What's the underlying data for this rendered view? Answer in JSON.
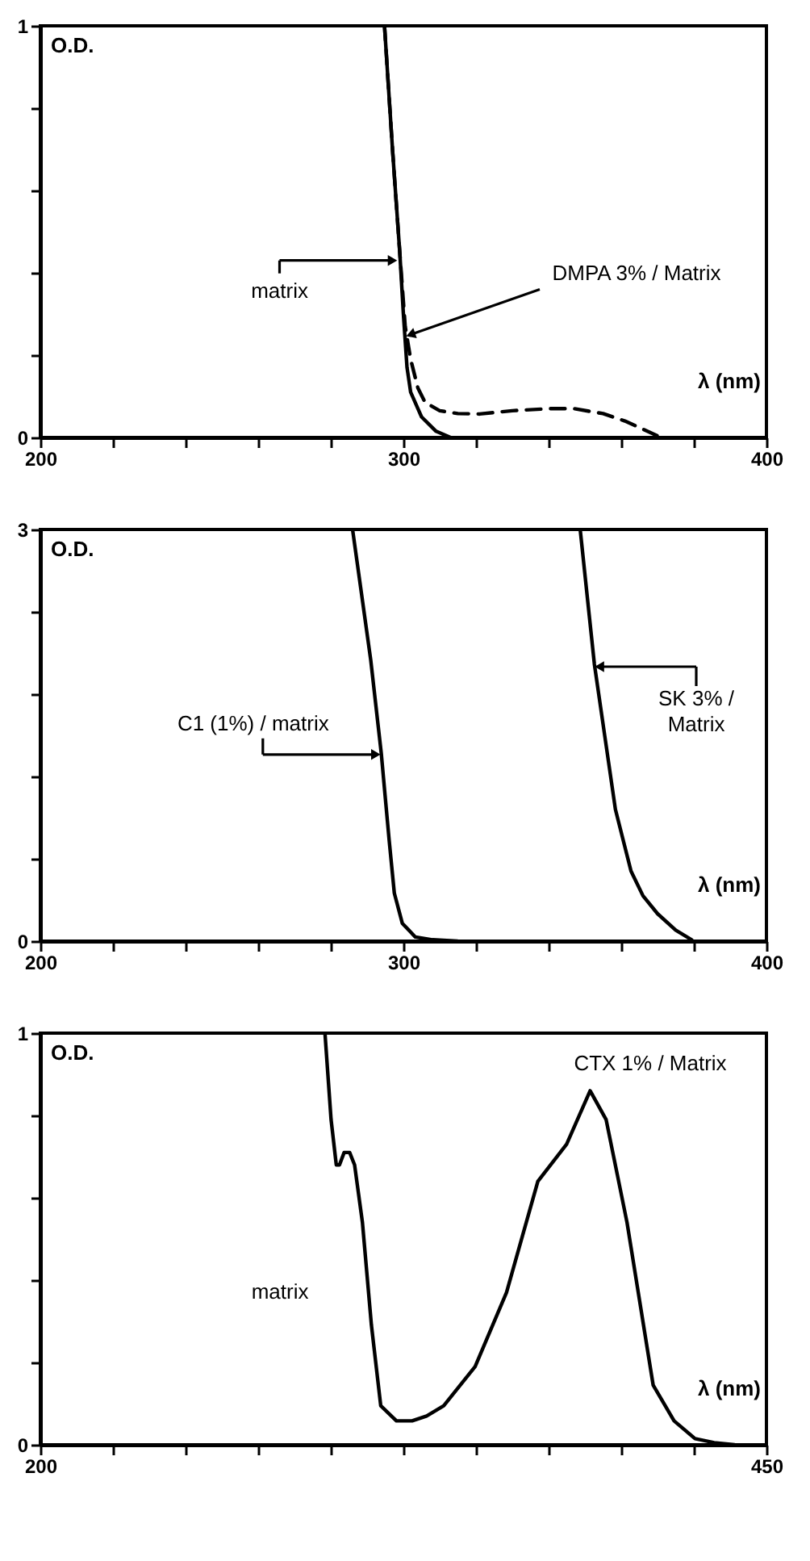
{
  "chart_data": [
    {
      "type": "line",
      "xlabel": "λ (nm)",
      "ylabel": "O.D.",
      "xlim": [
        200,
        400
      ],
      "ylim": [
        0,
        1
      ],
      "xticks": [
        200,
        {
          "value": 220,
          "label": null
        },
        {
          "value": 240,
          "label": null
        },
        {
          "value": 260,
          "label": null
        },
        {
          "value": 280,
          "label": null
        },
        300,
        {
          "value": 320,
          "label": null
        },
        {
          "value": 340,
          "label": null
        },
        {
          "value": 360,
          "label": null
        },
        {
          "value": 380,
          "label": null
        },
        400
      ],
      "yticks": [
        0,
        {
          "value": 0.2,
          "label": null
        },
        {
          "value": 0.4,
          "label": null
        },
        {
          "value": 0.6,
          "label": null
        },
        {
          "value": 0.8,
          "label": null
        },
        1
      ],
      "series": [
        {
          "color": "#000000",
          "line_style": "solid",
          "x": [
            294.8,
            297,
            299,
            300,
            301,
            302,
            305,
            309,
            313
          ],
          "values": [
            1,
            0.7,
            0.45,
            0.3,
            0.17,
            0.11,
            0.05,
            0.015,
            0
          ]
        },
        {
          "color": "#000000",
          "line_style": "dashed",
          "x": [
            294.8,
            297,
            299,
            300.5,
            302,
            304,
            306,
            310,
            315,
            321,
            330,
            340,
            347,
            355,
            361,
            366,
            371
          ],
          "values": [
            1,
            0.7,
            0.45,
            0.27,
            0.19,
            0.12,
            0.085,
            0.065,
            0.058,
            0.057,
            0.065,
            0.07,
            0.07,
            0.058,
            0.04,
            0.02,
            0
          ]
        }
      ],
      "annotations": [
        {
          "text": "matrix",
          "x": 297,
          "y": 0.43
        },
        {
          "text": "DMPA 3% / Matrix",
          "x": 302,
          "y": 0.25
        }
      ]
    },
    {
      "type": "line",
      "xlabel": "λ (nm)",
      "ylabel": "O.D.",
      "xlim": [
        200,
        400
      ],
      "ylim": [
        0,
        3
      ],
      "xticks": [
        200,
        {
          "value": 220,
          "label": null
        },
        {
          "value": 240,
          "label": null
        },
        {
          "value": 260,
          "label": null
        },
        {
          "value": 280,
          "label": null
        },
        300,
        {
          "value": 320,
          "label": null
        },
        {
          "value": 340,
          "label": null
        },
        {
          "value": 360,
          "label": null
        },
        {
          "value": 380,
          "label": null
        },
        400
      ],
      "yticks": [
        0,
        {
          "value": 0.6,
          "label": null
        },
        {
          "value": 1.2,
          "label": null
        },
        {
          "value": 1.8,
          "label": null
        },
        {
          "value": 2.4,
          "label": null
        },
        3
      ],
      "series": [
        {
          "color": "#000000",
          "x": [
            286,
            291,
            293.9,
            296.1,
            297.5,
            299.7,
            303.3,
            308,
            314.9
          ],
          "values": [
            3,
            2.05,
            1.37,
            0.73,
            0.35,
            0.13,
            0.03,
            0.01,
            0
          ]
        },
        {
          "color": "#000000",
          "x": [
            348.7,
            352.6,
            355.5,
            358.4,
            362.7,
            366,
            370,
            375,
            379.4
          ],
          "values": [
            3,
            2.02,
            1.49,
            0.96,
            0.51,
            0.33,
            0.2,
            0.08,
            0.01
          ]
        }
      ],
      "annotations": [
        {
          "text": "C1 (1%) / matrix",
          "x": 292.4,
          "y": 1.36
        },
        {
          "text": "SK 3% / Matrix",
          "x": 354,
          "y": 2.0
        }
      ]
    },
    {
      "type": "line",
      "xlabel": "λ (nm)",
      "ylabel": "O.D.",
      "xlim": [
        200,
        450
      ],
      "ylim": [
        0,
        1
      ],
      "xticks": [
        200,
        {
          "value": 225,
          "label": null
        },
        {
          "value": 250,
          "label": null
        },
        {
          "value": 275,
          "label": null
        },
        {
          "value": 300,
          "label": null
        },
        {
          "value": 325,
          "label": null
        },
        {
          "value": 350,
          "label": null
        },
        {
          "value": 375,
          "label": null
        },
        {
          "value": 400,
          "label": null
        },
        {
          "value": 425,
          "label": null
        },
        450
      ],
      "yticks": [
        0,
        {
          "value": 0.2,
          "label": null
        },
        {
          "value": 0.4,
          "label": null
        },
        {
          "value": 0.6,
          "label": null
        },
        {
          "value": 0.8,
          "label": null
        },
        1
      ],
      "series": [
        {
          "color": "#000000",
          "x": [
            298,
            300.1,
            301.9,
            303,
            304.6,
            306.5,
            308.2,
            310.9,
            314,
            317.2,
            322.6,
            328,
            333,
            338.9,
            349.7,
            360.5,
            371.3,
            381.2,
            389.3,
            394.8,
            402,
            411,
            418.2,
            425.4,
            432,
            439
          ],
          "values": [
            1,
            0.79,
            0.68,
            0.68,
            0.71,
            0.71,
            0.68,
            0.54,
            0.29,
            0.095,
            0.058,
            0.058,
            0.07,
            0.095,
            0.19,
            0.37,
            0.64,
            0.73,
            0.86,
            0.79,
            0.54,
            0.145,
            0.058,
            0.015,
            0.005,
            0
          ]
        }
      ],
      "annotations": [
        "matrix",
        "CTX 1% / Matrix"
      ]
    }
  ]
}
